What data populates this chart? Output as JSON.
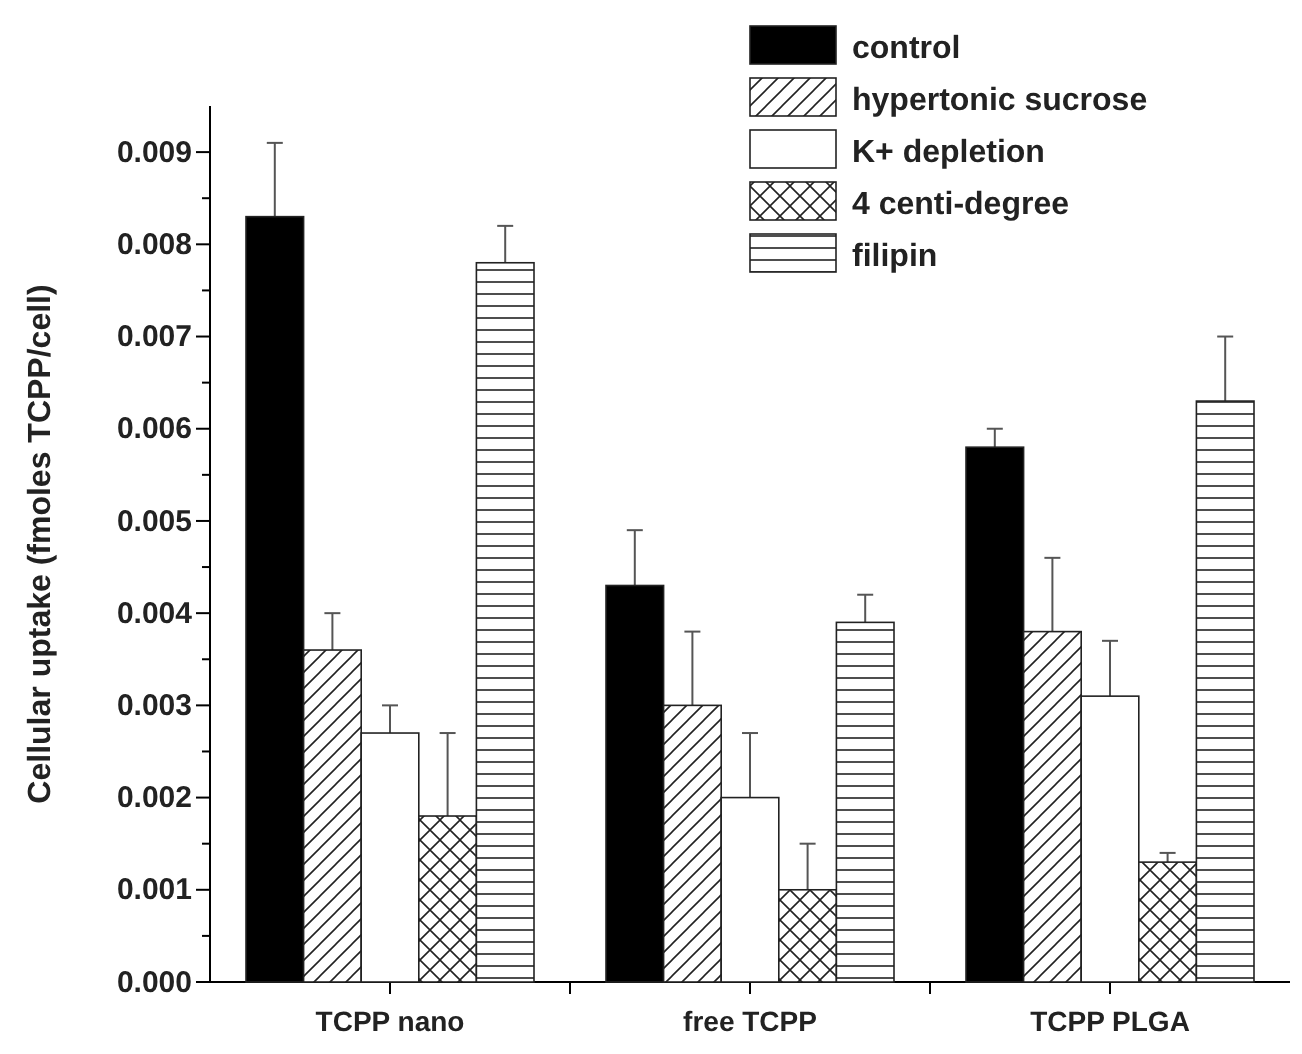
{
  "chart_data": {
    "type": "bar",
    "ylabel": "Cellular uptake (fmoles TCPP/cell)",
    "categories": [
      "TCPP nano",
      "free TCPP",
      "TCPP PLGA"
    ],
    "series": [
      {
        "name": "control",
        "color": "#000000",
        "values": [
          0.0083,
          0.0043,
          0.0058
        ],
        "errors": [
          [
            0.0083,
            0.0091
          ],
          [
            0.0043,
            0.0049
          ],
          [
            0.0058,
            0.006
          ]
        ]
      },
      {
        "name": "hypertonic sucrose",
        "color": "#222222",
        "values": [
          0.0036,
          0.003,
          0.0038
        ],
        "errors": [
          [
            0.0036,
            0.004
          ],
          [
            0.003,
            0.0038
          ],
          [
            0.0038,
            0.0046
          ]
        ]
      },
      {
        "name": "K+ depletion",
        "color": "#ffffff",
        "values": [
          0.0027,
          0.002,
          0.0031
        ],
        "errors": [
          [
            0.0027,
            0.003
          ],
          [
            0.002,
            0.0027
          ],
          [
            0.0031,
            0.0037
          ]
        ]
      },
      {
        "name": "4 centi-degree",
        "color": "#222222",
        "values": [
          0.0018,
          0.001,
          0.0013
        ],
        "errors": [
          [
            0.0018,
            0.0027
          ],
          [
            0.001,
            0.0015
          ],
          [
            0.0013,
            0.0014
          ]
        ]
      },
      {
        "name": "filipin",
        "color": "#222222",
        "values": [
          0.0078,
          0.0039,
          0.0063
        ],
        "errors": [
          [
            0.0078,
            0.0082
          ],
          [
            0.0039,
            0.0042
          ],
          [
            0.0063,
            0.007
          ]
        ]
      }
    ],
    "ylim": [
      0,
      0.0095
    ],
    "yticks": [
      {
        "value": 0,
        "label": "0.000"
      },
      {
        "value": 0.0005,
        "label": null
      },
      0.001,
      {
        "value": 0.0015,
        "label": null
      },
      0.002,
      {
        "value": 0.0025,
        "label": null
      },
      0.003,
      {
        "value": 0.0035,
        "label": null
      },
      0.004,
      {
        "value": 0.0045,
        "label": null
      },
      0.005,
      {
        "value": 0.0055,
        "label": null
      },
      0.006,
      {
        "value": 0.0065,
        "label": null
      },
      0.007,
      {
        "value": 0.0075,
        "label": null
      },
      0.008,
      {
        "value": 0.0085,
        "label": null
      },
      0.009
    ],
    "legend": "top right",
    "grid": false
  }
}
